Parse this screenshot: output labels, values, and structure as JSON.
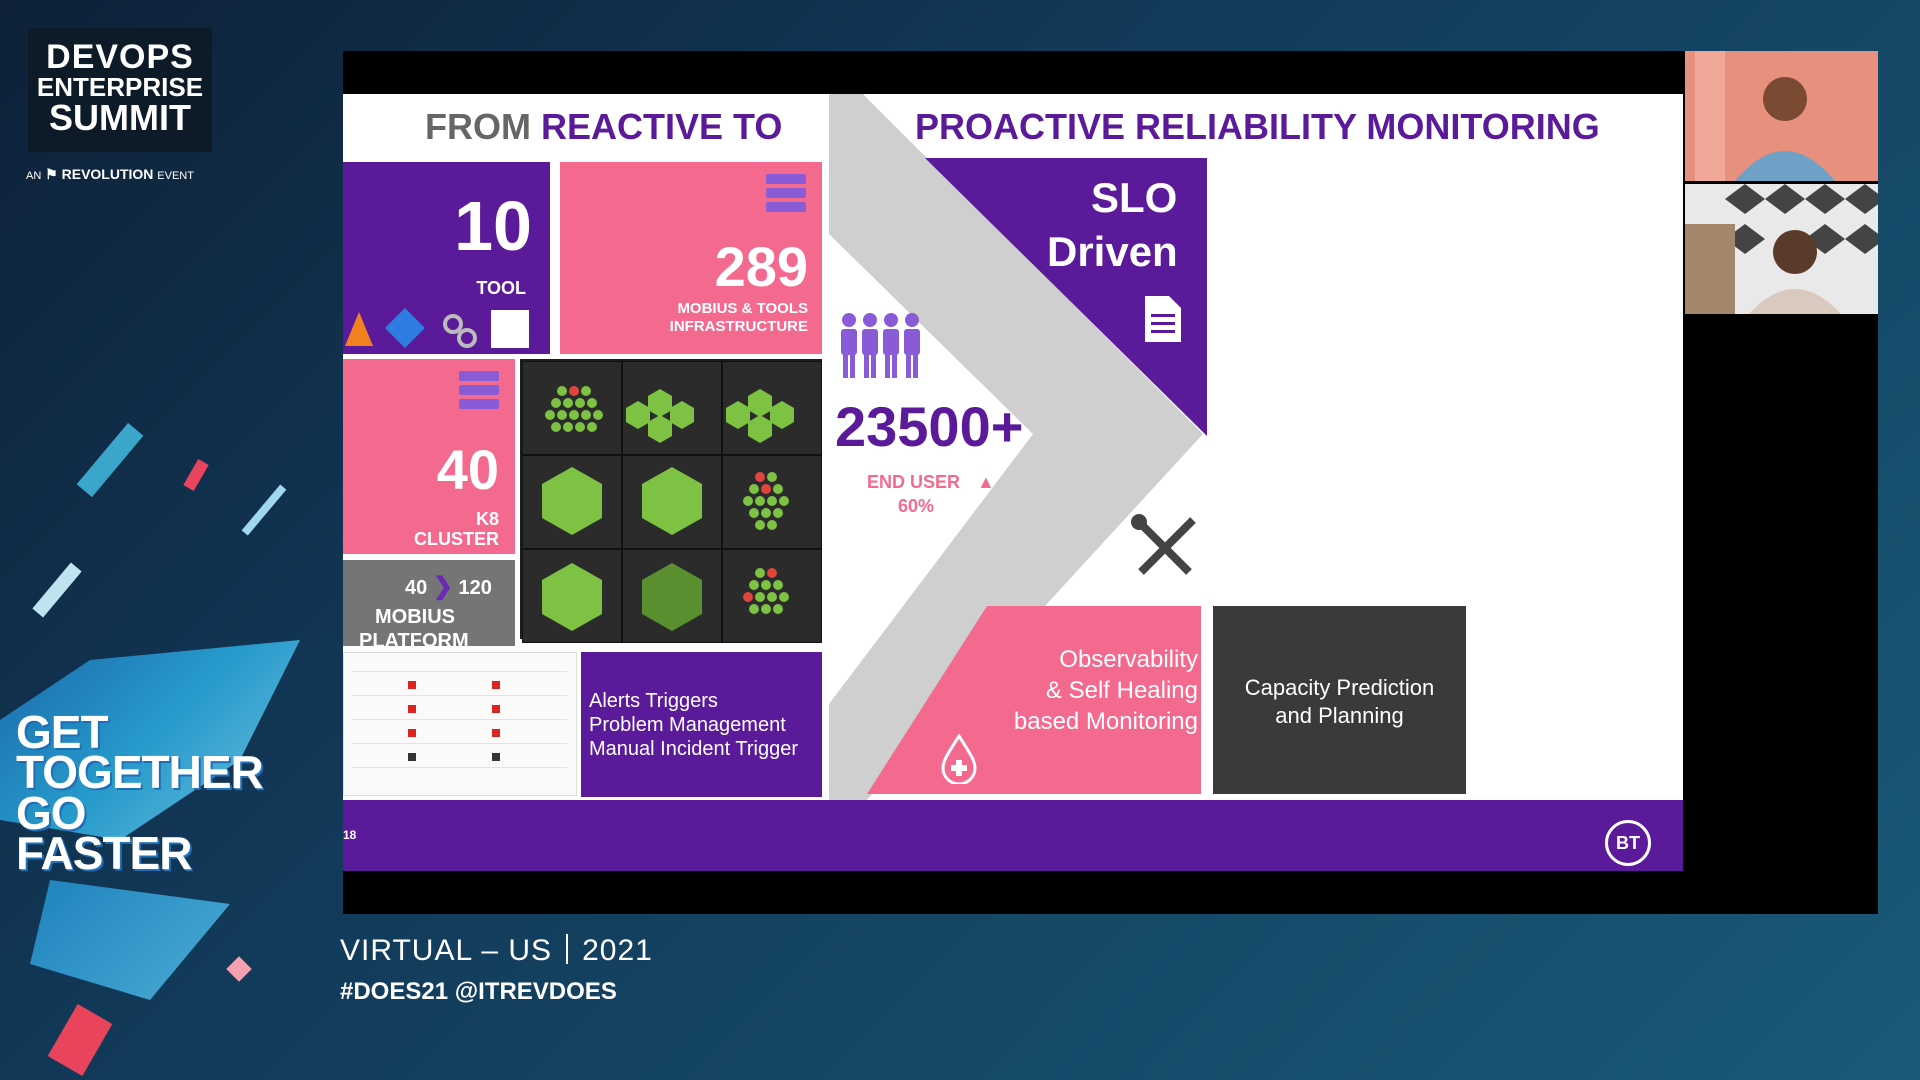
{
  "branding": {
    "line1": "DEVOPS",
    "line2": "ENTERPRISE",
    "line3": "SUMMIT",
    "revolution_prefix": "AN",
    "revolution_name": "REVOLUTION",
    "revolution_suffix": "EVENT",
    "tagline": [
      "GET",
      "TOGETHER",
      "GO",
      "FASTER"
    ],
    "event_region": "VIRTUAL – US",
    "event_year": "2021",
    "hashtags": "#DOES21 @ITREVDOES"
  },
  "slide": {
    "header_from": "FROM",
    "header_reactive": "REACTIVE TO",
    "header_right": "PROACTIVE RELIABILITY MONITORING",
    "tool_count": "10",
    "tool_label": "TOOL",
    "infra_count": "289",
    "infra_label_1": "MOBIUS & TOOLS",
    "infra_label_2": "INFRASTRUCTURE",
    "k8_count": "40",
    "k8_label_1": "K8",
    "k8_label_2": "CLUSTER",
    "platform_from": "40",
    "platform_to": "120",
    "platform_label_1": "MOBIUS",
    "platform_label_2": "PLATFORM",
    "users_count": "23500+",
    "users_label": "END USER",
    "users_growth": "60%",
    "slo_line1": "SLO",
    "slo_line2": "Driven",
    "alerts_lines": [
      "Alerts Triggers",
      "Problem Management",
      "Manual Incident Trigger"
    ],
    "observability_lines": [
      "Observability",
      "& Self Healing",
      "based Monitoring"
    ],
    "capacity_lines": [
      "Capacity Prediction",
      "and Planning"
    ],
    "slide_number": "18",
    "logo_text": "BT"
  },
  "icons": {
    "people": "people-icon",
    "document": "document-icon",
    "tools": "wrench-screwdriver-icon",
    "drop": "blood-drop-icon",
    "server": "server-icon"
  },
  "colors": {
    "purple": "#5b1a99",
    "pink": "#f4698e",
    "dark_gray": "#3a3a3a",
    "hex_green": "#7ec243"
  }
}
